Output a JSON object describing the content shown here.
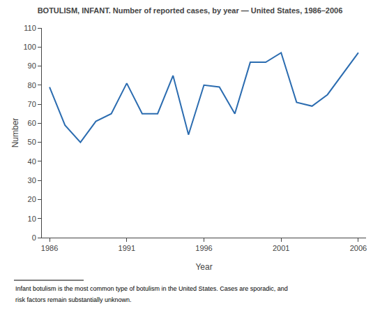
{
  "chart_data": {
    "type": "line",
    "title": "BOTULISM, INFANT. Number of reported cases, by year — United States, 1986–2006",
    "x": [
      1986,
      1987,
      1988,
      1989,
      1990,
      1991,
      1992,
      1993,
      1994,
      1995,
      1996,
      1997,
      1998,
      1999,
      2000,
      2001,
      2002,
      2003,
      2004,
      2005,
      2006
    ],
    "values": [
      79,
      59,
      50,
      61,
      65,
      81,
      65,
      65,
      85,
      54,
      80,
      79,
      65,
      92,
      92,
      97,
      71,
      69,
      75,
      86,
      97
    ],
    "xlabel": "Year",
    "ylabel": "Number",
    "xlim": [
      1985.5,
      2006.5
    ],
    "ylim": [
      0,
      110
    ],
    "xticks": [
      1986,
      1991,
      1996,
      2001,
      2006
    ],
    "yticks": [
      0,
      10,
      20,
      30,
      40,
      50,
      60,
      70,
      80,
      90,
      100,
      110
    ],
    "color": "#2b6cb0",
    "grid": false,
    "annotations": [
      "Infant botulism is the most common type of botulism in the United States. Cases are sporadic, and",
      "risk factors remain substantially unknown."
    ]
  }
}
